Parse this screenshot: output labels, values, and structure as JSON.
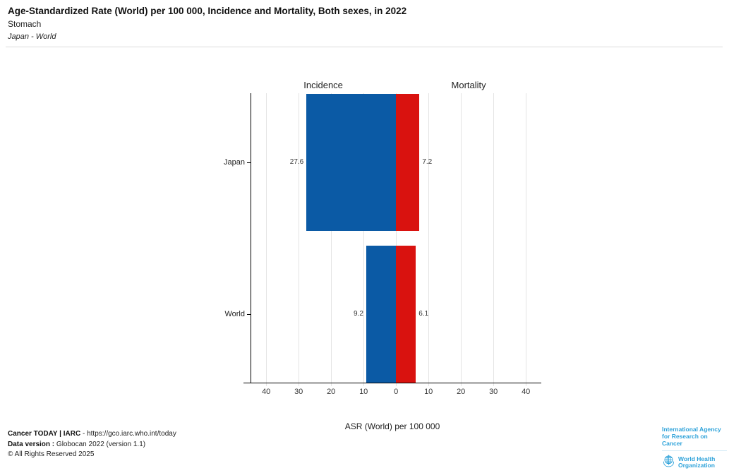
{
  "header": {
    "title": "Age-Standardized Rate (World) per 100 000, Incidence and Mortality, Both sexes, in 2022",
    "subtitle": "Stomach",
    "comparison": "Japan - World"
  },
  "chart_data": {
    "type": "bar",
    "orientation": "horizontal_diverging",
    "title": "Age-Standardized Rate (World) per 100 000, Incidence and Mortality, Both sexes, in 2022",
    "subtitle": "Stomach",
    "population_comparison": "Japan - World",
    "categories": [
      "Japan",
      "World"
    ],
    "series": [
      {
        "name": "Incidence",
        "side": "left",
        "color": "#0b5aa5",
        "values": [
          27.6,
          9.2
        ],
        "labels": [
          "27.6",
          "9.2"
        ]
      },
      {
        "name": "Mortality",
        "side": "right",
        "color": "#d9120f",
        "values": [
          7.2,
          6.1
        ],
        "labels": [
          "7.2",
          "6.1"
        ]
      }
    ],
    "xlabel": "ASR (World) per 100 000",
    "ticks": [
      -40,
      -30,
      -20,
      -10,
      0,
      10,
      20,
      30,
      40
    ],
    "tick_labels": [
      "40",
      "30",
      "20",
      "10",
      "0",
      "10",
      "20",
      "30",
      "40"
    ],
    "xlim": [
      -47,
      45
    ],
    "grid": true,
    "legend_position": "column_headers_top"
  },
  "footer": {
    "line1_bold": "Cancer TODAY | IARC",
    "line1_rest": " - https://gco.iarc.who.int/today",
    "line2_bold": "Data version :",
    "line2_rest": " Globocan 2022 (version 1.1)",
    "line3": "© All Rights Reserved 2025"
  },
  "logo": {
    "iarc_line1": "International Agency",
    "iarc_line2": "for Research on Cancer",
    "who_line1": "World Health",
    "who_line2": "Organization",
    "brand_color": "#2fa3da"
  },
  "colors": {
    "incidence_blue": "#0b5aa5",
    "mortality_red": "#d9120f",
    "gridline": "#e4e4e4",
    "axis": "#000000"
  }
}
